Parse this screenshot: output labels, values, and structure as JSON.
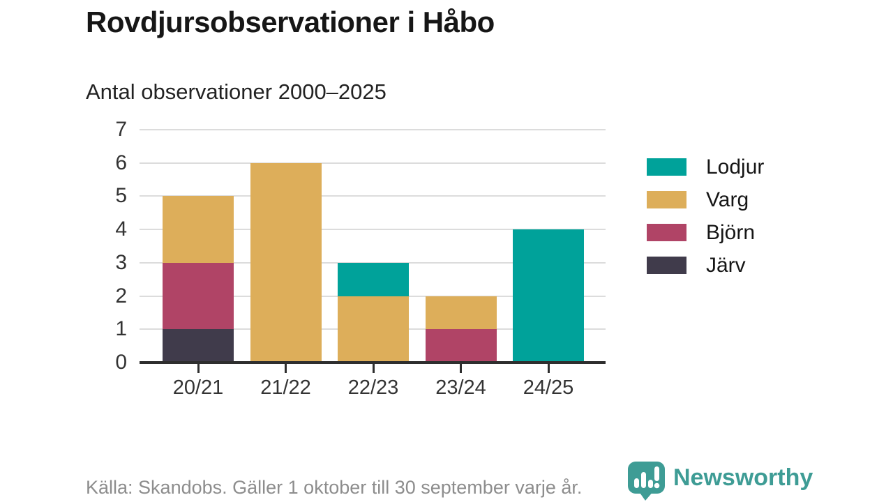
{
  "chart_data": {
    "type": "bar",
    "stacked": true,
    "title": "Rovdjursobservationer i Håbo",
    "subtitle": "Antal observationer 2000–2025",
    "categories": [
      "20/21",
      "21/22",
      "22/23",
      "23/24",
      "24/25"
    ],
    "series": [
      {
        "name": "Lodjur",
        "color": "#00a29a",
        "values": [
          0,
          0,
          1,
          0,
          4
        ]
      },
      {
        "name": "Varg",
        "color": "#ddae5a",
        "values": [
          2,
          6,
          2,
          1,
          0
        ]
      },
      {
        "name": "Björn",
        "color": "#b04466",
        "values": [
          2,
          0,
          0,
          1,
          0
        ]
      },
      {
        "name": "Järv",
        "color": "#403b4b",
        "values": [
          1,
          0,
          0,
          0,
          0
        ]
      }
    ],
    "stack_order_bottom_to_top": [
      "Järv",
      "Björn",
      "Varg",
      "Lodjur"
    ],
    "totals_per_category": [
      5,
      6,
      3,
      2,
      4
    ],
    "ylim": [
      0,
      7
    ],
    "yticks": [
      0,
      1,
      2,
      3,
      4,
      5,
      6,
      7
    ],
    "grid": true,
    "legend_position": "right",
    "colors": {
      "grid": "#dcdcdc",
      "axis": "#2e2e2e",
      "tick_text": "#333333"
    }
  },
  "footer": {
    "source": "Källa: Skandobs. Gäller 1 oktober till 30 september varje år.",
    "brand": "Newsworthy",
    "brand_color": "#3e9c95",
    "logo_icon": "bar-chart-speech-bubble-icon"
  }
}
